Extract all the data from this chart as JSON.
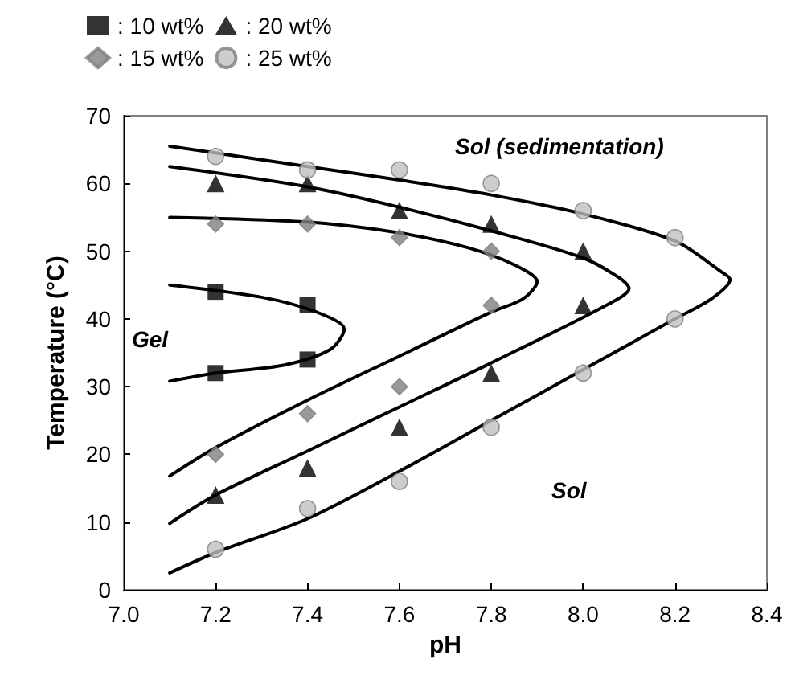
{
  "chart_data": {
    "type": "scatter",
    "xlabel": "pH",
    "ylabel": "Temperature (°C)",
    "xlim": [
      7.0,
      8.4
    ],
    "xticks": [
      {
        "value": 7.0,
        "label": "7.0"
      },
      7.2,
      7.4,
      7.6,
      7.8,
      {
        "value": 8.0,
        "label": "8.0"
      },
      8.2,
      8.4
    ],
    "ylim": [
      0,
      70
    ],
    "yticks": [
      0,
      10,
      20,
      30,
      40,
      50,
      60,
      70
    ],
    "grid": false,
    "legend": "top left",
    "annotations": [
      "Gel",
      "Sol (sedimentation)",
      "Sol"
    ],
    "series": [
      {
        "name": ": 10 wt%",
        "color": "#000000",
        "marker": "square",
        "x": [
          7.2,
          7.4,
          7.2,
          7.4
        ],
        "values": [
          44,
          42,
          32,
          34
        ]
      },
      {
        "name": ": 15 wt%",
        "color": "#808080",
        "marker": "diamond",
        "x": [
          7.2,
          7.4,
          7.6,
          7.8,
          7.8,
          7.6,
          7.4,
          7.2
        ],
        "values": [
          54,
          54,
          52,
          50,
          42,
          30,
          26,
          20
        ]
      },
      {
        "name": ": 20 wt%",
        "color": "#000000",
        "marker": "triangle",
        "x": [
          7.2,
          7.4,
          7.6,
          7.8,
          8.0,
          8.0,
          7.8,
          7.6,
          7.4,
          7.2
        ],
        "values": [
          60,
          60,
          56,
          54,
          50,
          42,
          32,
          24,
          18,
          14
        ]
      },
      {
        "name": ": 25 wt%",
        "color": "#c0c0c0",
        "marker": "circle",
        "x": [
          7.2,
          7.4,
          7.6,
          7.8,
          8.0,
          8.2,
          8.2,
          8.0,
          7.8,
          7.6,
          7.4,
          7.2
        ],
        "values": [
          64,
          62,
          62,
          60,
          56,
          52,
          40,
          32,
          24,
          16,
          12,
          6
        ]
      },
      {
        "type": "line",
        "color": "#000000",
        "marker": "none",
        "x": [
          7.1,
          7.3,
          7.42,
          7.48,
          7.45,
          7.35,
          7.2,
          7.1
        ],
        "values": [
          45,
          43.2,
          41,
          38.5,
          35.5,
          33.2,
          32,
          30.8
        ]
      },
      {
        "type": "line",
        "color": "#000000",
        "marker": "none",
        "x": [
          7.1,
          7.4,
          7.6,
          7.75,
          7.85,
          7.9,
          7.87,
          7.8,
          7.6,
          7.4,
          7.2,
          7.1
        ],
        "values": [
          55,
          54.3,
          52.7,
          50.5,
          48,
          45.5,
          43,
          41,
          34.5,
          28,
          21,
          16.8
        ]
      },
      {
        "type": "line",
        "color": "#000000",
        "marker": "none",
        "x": [
          7.1,
          7.4,
          7.6,
          7.8,
          8.0,
          8.08,
          8.1,
          8.05,
          7.8,
          7.6,
          7.4,
          7.2,
          7.1
        ],
        "values": [
          62.5,
          59.5,
          56.5,
          53,
          49,
          46,
          44.5,
          42,
          33.5,
          27,
          20.5,
          14,
          9.8
        ]
      },
      {
        "type": "line",
        "color": "#000000",
        "marker": "none",
        "x": [
          7.1,
          7.4,
          7.6,
          7.8,
          8.0,
          8.2,
          8.3,
          8.32,
          8.28,
          8.2,
          8.0,
          7.8,
          7.6,
          7.4,
          7.2,
          7.1
        ],
        "values": [
          65.5,
          62.5,
          60.5,
          58.3,
          55.5,
          51.5,
          47,
          45.8,
          43,
          40,
          32.5,
          25,
          17.5,
          10.5,
          5.5,
          2.5
        ]
      }
    ]
  }
}
